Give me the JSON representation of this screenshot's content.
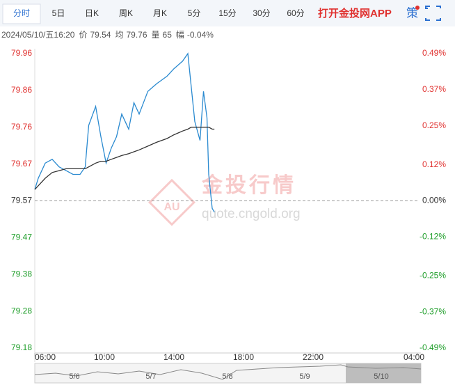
{
  "tabs": [
    "分时",
    "5日",
    "日K",
    "周K",
    "月K",
    "5分",
    "15分",
    "30分",
    "60分"
  ],
  "toolbar": {
    "app_link": "打开金投网APP",
    "strategy": "策"
  },
  "info": {
    "datetime": "2024/05/10/五16:20",
    "price_label": "价",
    "price": 79.54,
    "avg_label": "均",
    "avg": 79.76,
    "vol_label": "量",
    "vol": 65,
    "amp_label": "幅",
    "amp": "-0.04%"
  },
  "watermark": {
    "title": "金投行情",
    "badge": "AU",
    "url": "quote.cngold.org"
  },
  "navigator": {
    "labels": [
      "5/6",
      "5/7",
      "5/8",
      "5/9",
      "5/10"
    ]
  },
  "chart_data": {
    "type": "line",
    "x": [
      6.0,
      6.2,
      6.6,
      7.0,
      7.4,
      7.8,
      8.2,
      8.6,
      8.9,
      9.1,
      9.5,
      9.8,
      10.1,
      10.4,
      10.7,
      11.0,
      11.4,
      11.7,
      12.0,
      12.5,
      13.0,
      13.6,
      14.0,
      14.5,
      14.8,
      15.0,
      15.2,
      15.5,
      15.7,
      15.9,
      16.0,
      16.2,
      16.33
    ],
    "series": [
      {
        "color": "#2a8ad0",
        "values": [
          79.6,
          79.63,
          79.67,
          79.68,
          79.66,
          79.65,
          79.64,
          79.64,
          79.66,
          79.77,
          79.82,
          79.74,
          79.67,
          79.71,
          79.74,
          79.8,
          79.76,
          79.83,
          79.8,
          79.86,
          79.88,
          79.9,
          79.92,
          79.94,
          79.96,
          79.87,
          79.78,
          79.73,
          79.86,
          79.79,
          79.64,
          79.55,
          79.54
        ]
      },
      {
        "color": "#333333",
        "values": [
          79.6,
          79.61,
          79.63,
          79.645,
          79.65,
          79.655,
          79.655,
          79.655,
          79.655,
          79.66,
          79.67,
          79.675,
          79.675,
          79.68,
          79.685,
          79.69,
          79.695,
          79.7,
          79.705,
          79.715,
          79.725,
          79.735,
          79.745,
          79.755,
          79.76,
          79.765,
          79.765,
          79.765,
          79.765,
          79.765,
          79.765,
          79.76,
          79.76
        ]
      }
    ],
    "xlim": [
      6,
      28
    ],
    "xticks": [
      {
        "value": 6,
        "label": "06:00"
      },
      {
        "value": 10,
        "label": "10:00"
      },
      {
        "value": 14,
        "label": "14:00"
      },
      {
        "value": 18,
        "label": "18:00"
      },
      {
        "value": 22,
        "label": "22:00"
      },
      {
        "value": 28,
        "label": "04:00"
      }
    ],
    "ylim": [
      79.18,
      79.96
    ],
    "yticks": [
      {
        "value": 79.96,
        "label": "79.96"
      },
      {
        "value": 79.8625,
        "label": "79.86"
      },
      {
        "value": 79.765,
        "label": "79.76"
      },
      {
        "value": 79.6675,
        "label": "79.67"
      },
      {
        "value": 79.57,
        "label": "79.57"
      },
      {
        "value": 79.4725,
        "label": "79.47"
      },
      {
        "value": 79.375,
        "label": "79.38"
      },
      {
        "value": 79.2775,
        "label": "79.28"
      },
      {
        "value": 79.18,
        "label": "79.18"
      }
    ],
    "y2lim": [
      -0.49,
      0.49
    ],
    "y2ticks": [
      {
        "value": 0.49,
        "label": "0.49%"
      },
      {
        "value": 0.37,
        "label": "0.37%"
      },
      {
        "value": 0.25,
        "label": "0.25%"
      },
      {
        "value": 0.12,
        "label": "0.12%"
      },
      {
        "value": 0,
        "label": "0.00%"
      },
      {
        "value": -0.12,
        "label": "-0.12%"
      },
      {
        "value": -0.25,
        "label": "-0.25%"
      },
      {
        "value": -0.37,
        "label": "-0.37%"
      },
      {
        "value": -0.49,
        "label": "-0.49%"
      }
    ],
    "up_color": "#e0312f",
    "down_color": "#1f9e2a",
    "flat_color": "#333333"
  }
}
